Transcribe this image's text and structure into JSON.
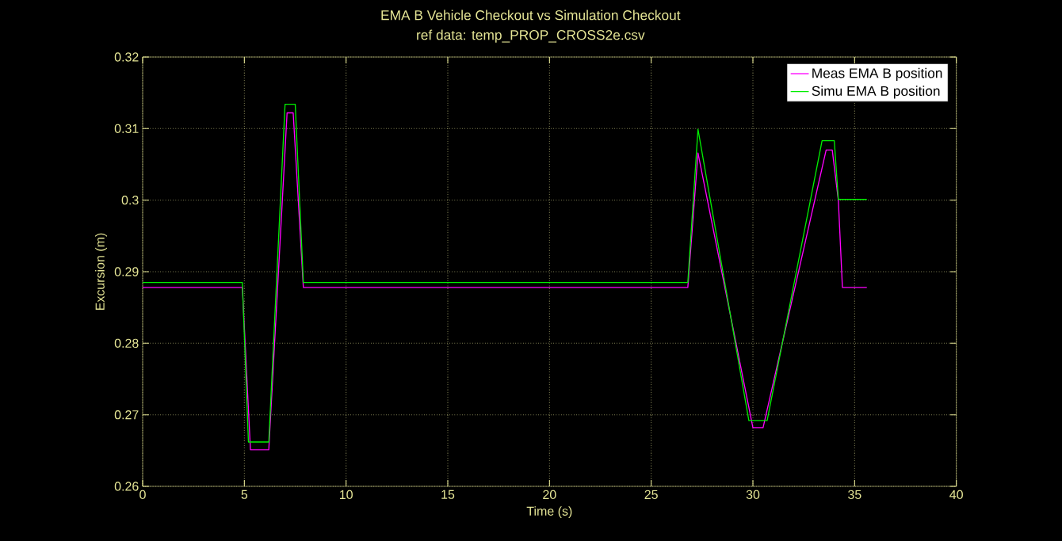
{
  "chart_data": {
    "type": "line",
    "title": "EMA B Vehicle Checkout vs Simulation Checkout",
    "subtitle": "ref data: temp_PROP_CROSS2e.csv",
    "xlabel": "Time (s)",
    "ylabel": "Excursion (m)",
    "xlim": [
      0,
      40
    ],
    "ylim": [
      0.26,
      0.32
    ],
    "xticks": [
      0,
      5,
      10,
      15,
      20,
      25,
      30,
      35,
      40
    ],
    "yticks": [
      0.26,
      0.27,
      0.28,
      0.29,
      0.3,
      0.31,
      0.32
    ],
    "grid": true,
    "legend": "top right",
    "line_style": "solid",
    "marker": "none",
    "series": [
      {
        "name": "Meas EMA B position",
        "color": "#ff00ff",
        "x": [
          0,
          4.9,
          5.3,
          6.2,
          7.1,
          7.4,
          7.9,
          26.8,
          27.3,
          30.0,
          30.5,
          33.6,
          33.9,
          34.2,
          34.4,
          35.6
        ],
        "values": [
          0.2878,
          0.2878,
          0.2651,
          0.2651,
          0.3122,
          0.3122,
          0.2878,
          0.2878,
          0.3066,
          0.2682,
          0.2682,
          0.307,
          0.307,
          0.3,
          0.2878,
          0.2878
        ]
      },
      {
        "name": "Simu EMA B position",
        "color": "#00ee00",
        "x": [
          0,
          4.9,
          5.2,
          6.2,
          7.0,
          7.5,
          7.9,
          26.8,
          27.3,
          29.8,
          30.7,
          33.4,
          34.0,
          34.2,
          35.6
        ],
        "values": [
          0.2885,
          0.2885,
          0.2662,
          0.2662,
          0.3134,
          0.3134,
          0.2885,
          0.2885,
          0.3099,
          0.2692,
          0.2692,
          0.3083,
          0.3083,
          0.3001,
          0.3001
        ]
      }
    ]
  }
}
